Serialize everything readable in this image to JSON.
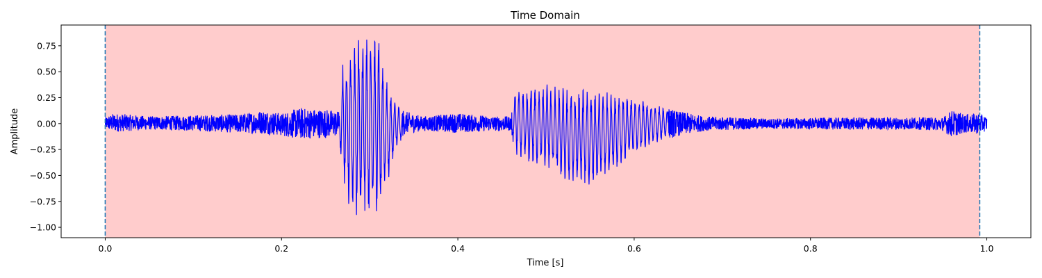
{
  "chart_data": {
    "type": "line",
    "title": "Time Domain",
    "xlabel": "Time [s]",
    "ylabel": "Amplitude",
    "xlim": [
      -0.05,
      1.05
    ],
    "ylim": [
      -1.1,
      0.95
    ],
    "xticks": [
      0.0,
      0.2,
      0.4,
      0.6,
      0.8,
      1.0
    ],
    "xtick_labels": [
      "0.0",
      "0.2",
      "0.4",
      "0.6",
      "0.8",
      "1.0"
    ],
    "yticks": [
      -1.0,
      -0.75,
      -0.5,
      -0.25,
      0.0,
      0.25,
      0.5,
      0.75
    ],
    "ytick_labels": [
      "−1.00",
      "−0.75",
      "−0.50",
      "−0.25",
      "0.00",
      "0.25",
      "0.50",
      "0.75"
    ],
    "grid": false,
    "highlight_region": {
      "x_start": 0.0,
      "x_end": 0.992,
      "color": "#ffcccc"
    },
    "markers": [
      {
        "x": 0.0,
        "style": "dashed",
        "color": "#1f77b4"
      },
      {
        "x": 0.992,
        "style": "dashed",
        "color": "#1f77b4"
      }
    ],
    "series": [
      {
        "color": "#0000ff",
        "envelope": {
          "x": [
            0.0,
            0.01,
            0.05,
            0.1,
            0.15,
            0.18,
            0.2,
            0.22,
            0.25,
            0.265,
            0.27,
            0.28,
            0.29,
            0.3,
            0.31,
            0.32,
            0.33,
            0.34,
            0.36,
            0.4,
            0.44,
            0.46,
            0.465,
            0.48,
            0.5,
            0.52,
            0.54,
            0.55,
            0.57,
            0.6,
            0.62,
            0.65,
            0.68,
            0.75,
            0.85,
            0.93,
            0.95,
            0.96,
            0.975,
            0.99,
            1.0
          ],
          "max": [
            0.06,
            0.1,
            0.07,
            0.08,
            0.09,
            0.13,
            0.1,
            0.15,
            0.14,
            0.12,
            0.65,
            0.8,
            0.85,
            0.86,
            0.85,
            0.4,
            0.2,
            0.12,
            0.07,
            0.1,
            0.07,
            0.07,
            0.35,
            0.36,
            0.38,
            0.35,
            0.34,
            0.33,
            0.3,
            0.26,
            0.2,
            0.12,
            0.07,
            0.05,
            0.06,
            0.06,
            0.06,
            0.13,
            0.09,
            0.1,
            0.07
          ],
          "min": [
            -0.05,
            -0.08,
            -0.06,
            -0.07,
            -0.09,
            -0.1,
            -0.12,
            -0.15,
            -0.14,
            -0.12,
            -0.6,
            -0.93,
            -0.94,
            -0.99,
            -0.85,
            -0.6,
            -0.25,
            -0.1,
            -0.07,
            -0.09,
            -0.07,
            -0.07,
            -0.3,
            -0.4,
            -0.42,
            -0.55,
            -0.6,
            -0.62,
            -0.5,
            -0.3,
            -0.2,
            -0.12,
            -0.07,
            -0.05,
            -0.06,
            -0.06,
            -0.07,
            -0.13,
            -0.09,
            -0.1,
            -0.07
          ]
        }
      }
    ]
  }
}
